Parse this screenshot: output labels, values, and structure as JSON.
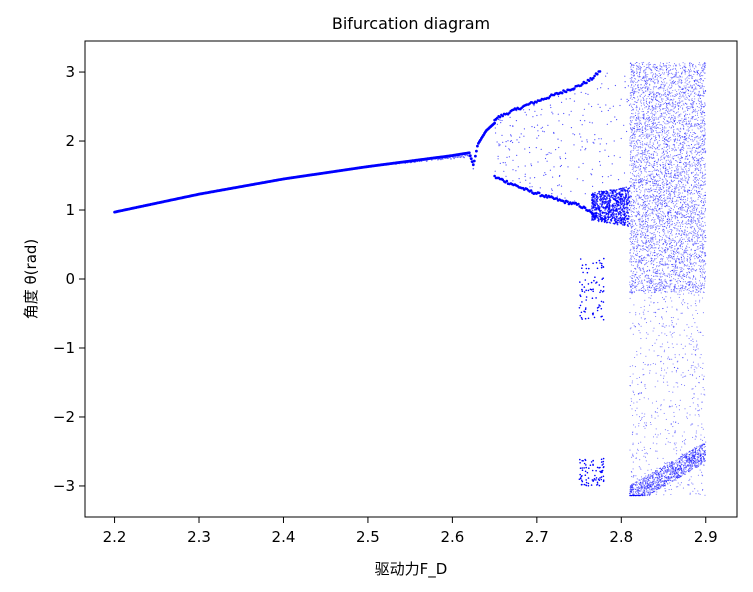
{
  "chart_data": {
    "type": "scatter",
    "title": "Bifurcation diagram",
    "xlabel": "驱动力F_D",
    "ylabel": "角度 θ(rad)",
    "xlim": [
      2.165,
      2.937
    ],
    "ylim": [
      -3.45,
      3.45
    ],
    "xticks": [
      2.2,
      2.3,
      2.4,
      2.5,
      2.6,
      2.7,
      2.8,
      2.9
    ],
    "xtick_labels": [
      "2.2",
      "2.3",
      "2.4",
      "2.5",
      "2.6",
      "2.7",
      "2.8",
      "2.9"
    ],
    "yticks": [
      3,
      2,
      1,
      0,
      -1,
      -2,
      -3
    ],
    "ytick_labels": [
      "3",
      "2",
      "1",
      "0",
      "−1",
      "−2",
      "−3"
    ],
    "grid": false,
    "legend": "none",
    "series_color": "#0000ff",
    "branches": [
      {
        "region": "period-1",
        "x": [
          2.2,
          2.3,
          2.4,
          2.5,
          2.55,
          2.6,
          2.61,
          2.62,
          2.625,
          2.63,
          2.64,
          2.65
        ],
        "y": [
          0.97,
          1.23,
          1.45,
          1.63,
          1.71,
          1.79,
          1.81,
          1.83,
          1.65,
          1.95,
          2.15,
          2.26
        ]
      },
      {
        "region": "period-2-upper",
        "x": [
          2.65,
          2.67,
          2.69,
          2.71,
          2.73,
          2.75,
          2.765,
          2.775
        ],
        "y": [
          2.32,
          2.43,
          2.53,
          2.62,
          2.71,
          2.8,
          2.9,
          3.02
        ]
      },
      {
        "region": "period-2-lower",
        "x": [
          2.65,
          2.67,
          2.69,
          2.71,
          2.73,
          2.75,
          2.76,
          2.77
        ],
        "y": [
          1.48,
          1.38,
          1.28,
          1.2,
          1.13,
          1.07,
          1.0,
          0.9
        ]
      }
    ],
    "chaos_region": {
      "x_start": 2.81,
      "x_end": 2.9,
      "y_min": -3.14,
      "y_max": 3.14
    }
  }
}
